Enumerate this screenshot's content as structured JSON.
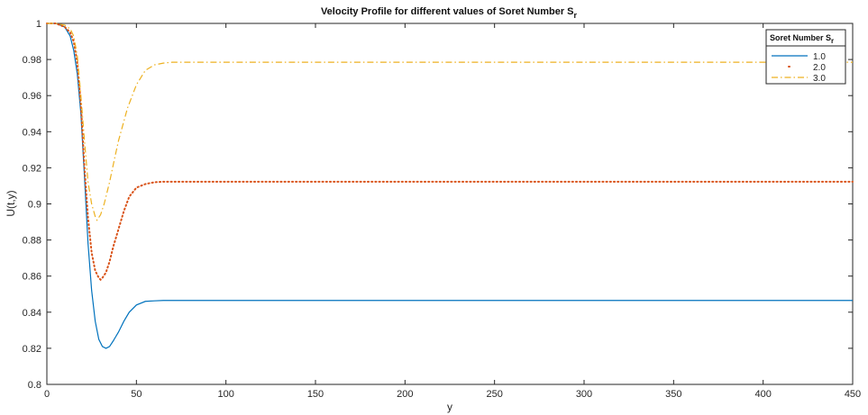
{
  "chart_data": {
    "type": "line",
    "title": "Velocity Profile for different values of Soret Number S",
    "title_subscript": "r",
    "xlabel": "y",
    "ylabel": "U(t,y)",
    "xlim": [
      0,
      450
    ],
    "ylim": [
      0.8,
      1.0
    ],
    "xticks": [
      0,
      50,
      100,
      150,
      200,
      250,
      300,
      350,
      400,
      450
    ],
    "yticks": [
      0.8,
      0.82,
      0.84,
      0.86,
      0.88,
      0.9,
      0.92,
      0.94,
      0.96,
      0.98,
      1
    ],
    "ytick_labels": [
      "0.8",
      "0.82",
      "0.84",
      "0.86",
      "0.88",
      "0.9",
      "0.92",
      "0.94",
      "0.96",
      "0.98",
      "1"
    ],
    "grid": false,
    "legend": {
      "title": "Soret Number S",
      "title_subscript": "r",
      "placement": "top-right"
    },
    "series": [
      {
        "name": "1.0",
        "style": "solid",
        "color": "#0072BD",
        "x": [
          0,
          5,
          10,
          13,
          15,
          17,
          19,
          21,
          23,
          25,
          27,
          29,
          31,
          33,
          35,
          37,
          40,
          43,
          46,
          50,
          55,
          60,
          65,
          70,
          80,
          100,
          150,
          200,
          250,
          300,
          350,
          400,
          450
        ],
        "y": [
          1.0,
          1.0,
          0.998,
          0.993,
          0.985,
          0.972,
          0.95,
          0.915,
          0.878,
          0.852,
          0.835,
          0.825,
          0.821,
          0.82,
          0.821,
          0.824,
          0.829,
          0.835,
          0.84,
          0.844,
          0.846,
          0.8463,
          0.8465,
          0.8465,
          0.8465,
          0.8465,
          0.8465,
          0.8465,
          0.8465,
          0.8465,
          0.8465,
          0.8465,
          0.8465
        ]
      },
      {
        "name": "2.0",
        "style": "dotted",
        "color": "#D95319",
        "x": [
          0,
          5,
          10,
          13,
          15,
          17,
          19,
          21,
          23,
          25,
          27,
          29,
          30,
          31,
          33,
          35,
          37,
          40,
          43,
          46,
          50,
          55,
          60,
          65,
          70,
          80,
          100,
          150,
          200,
          250,
          300,
          350,
          400,
          450
        ],
        "y": [
          1.0,
          1.0,
          0.998,
          0.995,
          0.99,
          0.978,
          0.955,
          0.92,
          0.892,
          0.873,
          0.863,
          0.859,
          0.858,
          0.859,
          0.862,
          0.868,
          0.876,
          0.886,
          0.896,
          0.904,
          0.909,
          0.911,
          0.912,
          0.9123,
          0.9123,
          0.9123,
          0.9123,
          0.9123,
          0.9123,
          0.9123,
          0.9123,
          0.9123,
          0.9123,
          0.9123
        ]
      },
      {
        "name": "3.0",
        "style": "dashdot",
        "color": "#EDB120",
        "x": [
          0,
          5,
          10,
          13,
          15,
          17,
          19,
          21,
          23,
          25,
          27,
          28,
          30,
          32,
          35,
          38,
          40,
          45,
          50,
          55,
          60,
          65,
          70,
          80,
          100,
          150,
          200,
          250,
          300,
          350,
          400,
          450
        ],
        "y": [
          1.0,
          1.0,
          0.999,
          0.997,
          0.993,
          0.982,
          0.96,
          0.935,
          0.912,
          0.9,
          0.893,
          0.891,
          0.894,
          0.9,
          0.912,
          0.926,
          0.935,
          0.953,
          0.966,
          0.974,
          0.977,
          0.978,
          0.9785,
          0.9785,
          0.9785,
          0.9785,
          0.9785,
          0.9785,
          0.9785,
          0.9785,
          0.9785,
          0.9785
        ]
      }
    ]
  }
}
